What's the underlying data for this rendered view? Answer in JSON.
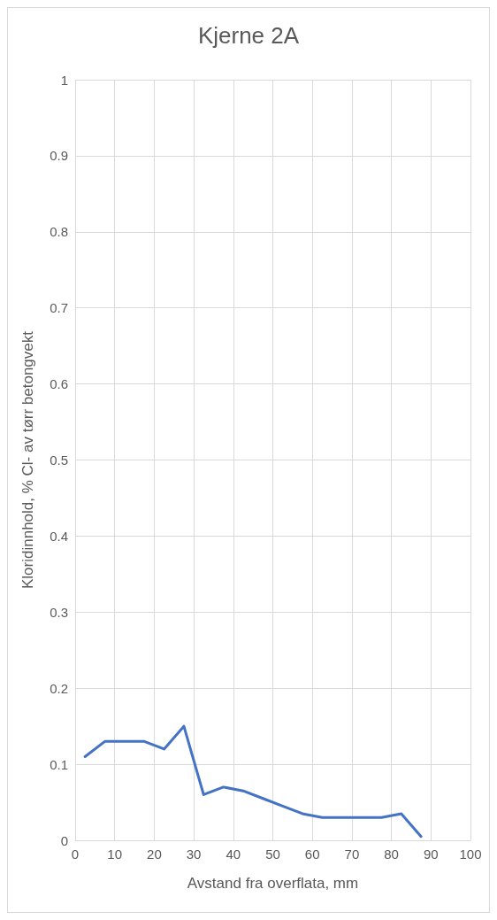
{
  "chart_data": {
    "type": "line",
    "title": "Kjerne 2A",
    "xlabel": "Avstand fra overflata, mm",
    "ylabel": "Kloridinnhold, % Cl- av tørr betongvekt",
    "x": [
      2.5,
      7.5,
      12.5,
      17.5,
      22.5,
      27.5,
      32.5,
      37.5,
      42.5,
      47.5,
      52.5,
      57.5,
      62.5,
      67.5,
      72.5,
      77.5,
      82.5,
      87.5
    ],
    "series": [
      {
        "color": "#4472c4",
        "values": [
          0.11,
          0.13,
          0.13,
          0.13,
          0.12,
          0.15,
          0.06,
          0.07,
          0.065,
          0.055,
          0.045,
          0.035,
          0.03,
          0.03,
          0.03,
          0.03,
          0.035,
          0.005
        ]
      }
    ],
    "xlim": [
      0,
      100
    ],
    "xticks": [
      0,
      10,
      20,
      30,
      40,
      50,
      60,
      70,
      80,
      90,
      100
    ],
    "ylim": [
      0,
      1
    ],
    "yticks": [
      0,
      0.1,
      0.2,
      0.3,
      0.4,
      0.5,
      0.6,
      0.7,
      0.8,
      0.9,
      1
    ],
    "grid": true,
    "marker": "none",
    "line_style": "solid"
  }
}
